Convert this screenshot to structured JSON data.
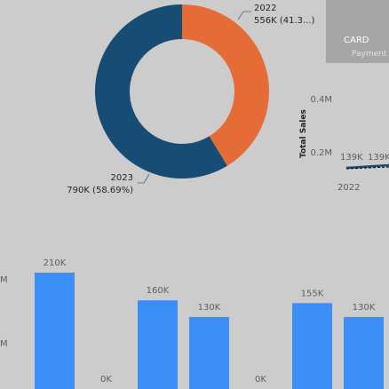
{
  "chart_data": [
    {
      "type": "pie",
      "variant": "donut",
      "slices": [
        {
          "label": "2022",
          "value_label": "556K (41.3...)",
          "value": 556,
          "percent": 41.31,
          "color": "#e66c37"
        },
        {
          "label": "2023",
          "value_label": "790K (58.69%)",
          "value": 790,
          "percent": 58.69,
          "color": "#174c74"
        }
      ]
    },
    {
      "type": "line",
      "ylabel": "Total Sales",
      "yticks": [
        "0.4M",
        "0.2M"
      ],
      "x_tick_labels": [
        "2022"
      ],
      "data_labels": [
        "139K",
        "139K"
      ],
      "color": "#174c74"
    },
    {
      "type": "bar",
      "color": "#3a8ef6",
      "values": [
        210,
        0,
        160,
        130,
        0,
        155,
        130
      ],
      "value_labels": [
        "210K",
        "0K",
        "160K",
        "130K",
        "0K",
        "155K",
        "130K"
      ],
      "ytick_partial": [
        "M",
        "M"
      ]
    }
  ],
  "card": {
    "title": "CARD",
    "subtitle": "Payment M"
  }
}
